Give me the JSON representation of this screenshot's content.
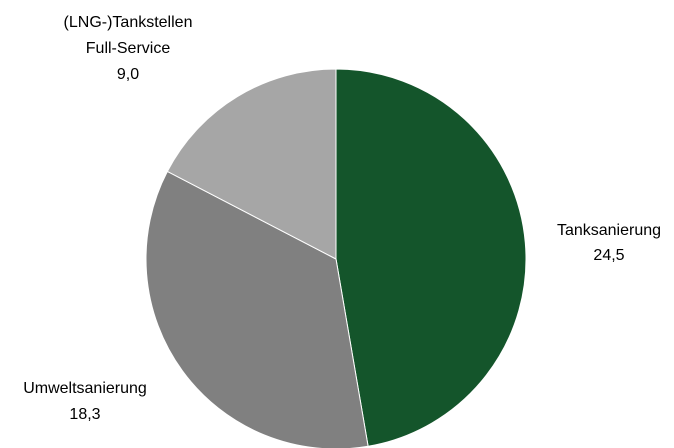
{
  "chart_data": {
    "type": "pie",
    "slices": [
      {
        "label": "Tanksanierung",
        "value": 24.5,
        "value_text": "24,5",
        "color": "#14552b"
      },
      {
        "label": "Umweltsanierung",
        "value": 18.3,
        "value_text": "18,3",
        "color": "#808080"
      },
      {
        "label_lines": [
          "(LNG-)Tankstellen",
          "Full-Service"
        ],
        "value": 9.0,
        "value_text": "9,0",
        "color": "#a6a6a6"
      }
    ],
    "legend": "none",
    "start_angle": "12 o'clock",
    "direction": "clockwise"
  }
}
